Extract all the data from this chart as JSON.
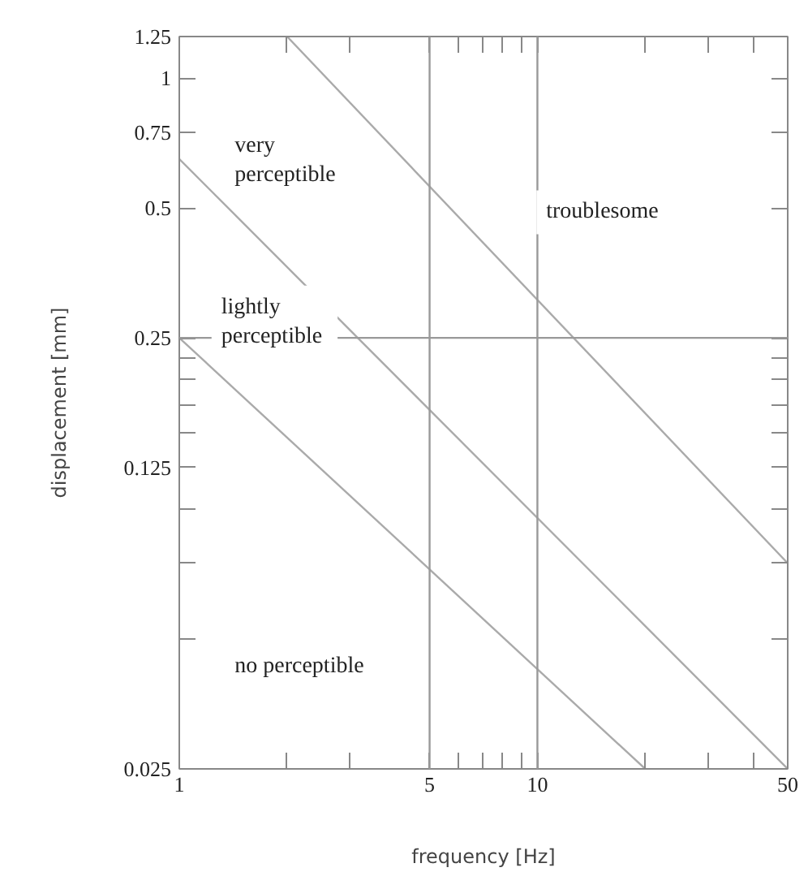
{
  "chart_data": {
    "type": "line",
    "xlabel": "frequency [Hz]",
    "ylabel": "displacement [mm]",
    "log": "xy",
    "grid": false,
    "marker": "none",
    "line_style": "solid",
    "xlim": [
      1,
      50
    ],
    "ylim": [
      0.025,
      1.25
    ],
    "xticks": [
      1,
      {
        "value": 2,
        "label": null
      },
      {
        "value": 3,
        "label": null
      },
      5,
      {
        "value": 6,
        "label": null
      },
      {
        "value": 7,
        "label": null
      },
      {
        "value": 8,
        "label": null
      },
      {
        "value": 9,
        "label": null
      },
      10,
      {
        "value": 20,
        "label": null
      },
      {
        "value": 30,
        "label": null
      },
      {
        "value": 40,
        "label": null
      },
      50
    ],
    "yticks": [
      0.025,
      {
        "value": 0.05,
        "label": null
      },
      {
        "value": 0.075,
        "label": null
      },
      {
        "value": 0.1,
        "label": null
      },
      0.125,
      {
        "value": 0.15,
        "label": null
      },
      {
        "value": 0.175,
        "label": null
      },
      {
        "value": 0.2,
        "label": null
      },
      {
        "value": 0.225,
        "label": null
      },
      0.25,
      0.5,
      0.75,
      1,
      1.25
    ],
    "series": [
      {
        "color": "#aaaaaa",
        "x": [
          2,
          50
        ],
        "values": [
          1.25,
          0.075
        ]
      },
      {
        "color": "#aaaaaa",
        "x": [
          1,
          50
        ],
        "values": [
          0.65,
          0.025
        ]
      },
      {
        "color": "#aaaaaa",
        "x": [
          1,
          20
        ],
        "values": [
          0.25,
          0.025
        ]
      }
    ],
    "ref_lines": [
      {
        "axis": "x",
        "value": 5,
        "color": "#999999"
      },
      {
        "axis": "x",
        "value": 10,
        "color": "#999999"
      },
      {
        "axis": "y",
        "value": 0.25,
        "color": "#999999"
      }
    ],
    "annotations": [
      "very\n perceptible",
      "troublesome",
      "lightly\n perceptible",
      "no perceptible"
    ]
  }
}
